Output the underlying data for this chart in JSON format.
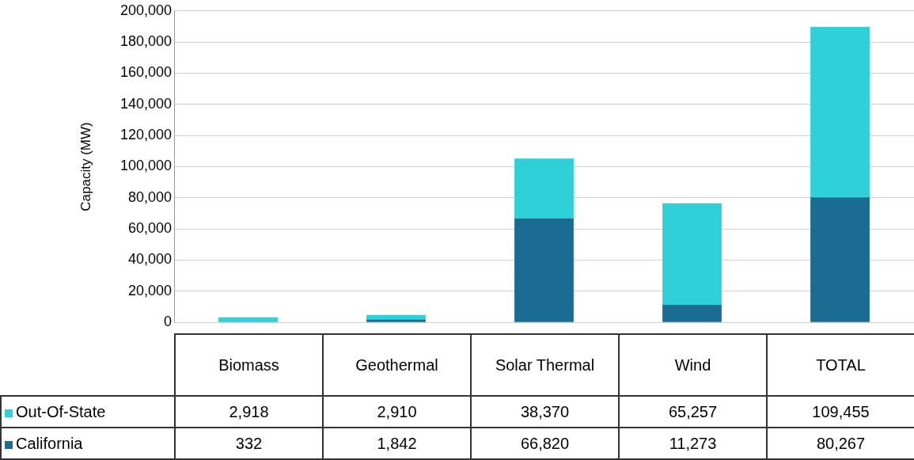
{
  "chart_data": {
    "type": "bar",
    "stacked": true,
    "ylabel": "Capacity (MW)",
    "categories": [
      "Biomass",
      "Geothermal",
      "Solar Thermal",
      "Wind",
      "TOTAL"
    ],
    "series": [
      {
        "name": "California",
        "color": "#1b6c93",
        "values": [
          332,
          1842,
          66820,
          11273,
          80267
        ],
        "value_labels": [
          "332",
          "1,842",
          "66,820",
          "11,273",
          "80,267"
        ]
      },
      {
        "name": "Out-Of-State",
        "color": "#2fd0d8",
        "values": [
          2918,
          2910,
          38370,
          65257,
          109455
        ],
        "value_labels": [
          "2,918",
          "2,910",
          "38,370",
          "65,257",
          "109,455"
        ]
      }
    ],
    "ylim": [
      0,
      200000
    ],
    "yticks": [
      {
        "value": 0,
        "label": "0"
      },
      {
        "value": 20000,
        "label": "20,000"
      },
      {
        "value": 40000,
        "label": "40,000"
      },
      {
        "value": 60000,
        "label": "60,000"
      },
      {
        "value": 80000,
        "label": "80,000"
      },
      {
        "value": 100000,
        "label": "100,000"
      },
      {
        "value": 120000,
        "label": "120,000"
      },
      {
        "value": 140000,
        "label": "140,000"
      },
      {
        "value": 160000,
        "label": "160,000"
      },
      {
        "value": 180000,
        "label": "180,000"
      },
      {
        "value": 200000,
        "label": "200,000"
      }
    ],
    "grid": "y",
    "legend": "bottom"
  }
}
